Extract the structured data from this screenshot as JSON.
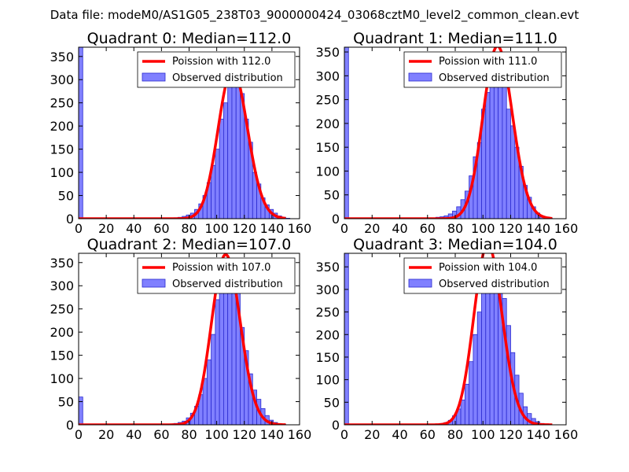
{
  "suptitle": "Data file: modeM0/AS1G05_238T03_9000000424_03068cztM0_level2_common_clean.evt",
  "colors": {
    "bars_fill": "#8080ff",
    "bars_stroke": "#2a2ad0",
    "poisson_line": "#ff0000",
    "axes": "#000000"
  },
  "chart_data": [
    {
      "type": "bar",
      "title": "Quadrant 0: Median=112.0",
      "legend": {
        "line": "Poission with 112.0",
        "bars": "Observed distribution",
        "placement": "top-right"
      },
      "xlim": [
        0,
        160
      ],
      "ylim": [
        0,
        370
      ],
      "xticks": [
        "0",
        "20",
        "40",
        "60",
        "80",
        "100",
        "120",
        "140",
        "160"
      ],
      "yticks": [
        "0",
        "50",
        "100",
        "150",
        "200",
        "250",
        "300",
        "350"
      ],
      "hist": {
        "bin_width": 3,
        "left_edge_bar": {
          "x0": 0,
          "x1": 3,
          "value": 370
        },
        "bins": [
          [
            66,
            1
          ],
          [
            69,
            2
          ],
          [
            72,
            3
          ],
          [
            75,
            5
          ],
          [
            78,
            8
          ],
          [
            81,
            12
          ],
          [
            84,
            20
          ],
          [
            87,
            32
          ],
          [
            90,
            50
          ],
          [
            93,
            78
          ],
          [
            96,
            115
          ],
          [
            99,
            150
          ],
          [
            102,
            215
          ],
          [
            105,
            250
          ],
          [
            108,
            320
          ],
          [
            111,
            340
          ],
          [
            114,
            310
          ],
          [
            117,
            270
          ],
          [
            120,
            215
          ],
          [
            123,
            165
          ],
          [
            126,
            100
          ],
          [
            129,
            75
          ],
          [
            132,
            45
          ],
          [
            135,
            30
          ],
          [
            138,
            20
          ],
          [
            141,
            12
          ],
          [
            144,
            6
          ],
          [
            147,
            3
          ],
          [
            150,
            1
          ]
        ]
      },
      "poisson_mean": 112.0
    },
    {
      "type": "bar",
      "title": "Quadrant 1: Median=111.0",
      "legend": {
        "line": "Poission with 111.0",
        "bars": "Observed distribution",
        "placement": "top-right"
      },
      "xlim": [
        0,
        160
      ],
      "ylim": [
        0,
        360
      ],
      "xticks": [
        "0",
        "20",
        "40",
        "60",
        "80",
        "100",
        "120",
        "140",
        "160"
      ],
      "yticks": [
        "0",
        "50",
        "100",
        "150",
        "200",
        "250",
        "300",
        "350"
      ],
      "hist": {
        "bin_width": 3,
        "left_edge_bar": {
          "x0": 0,
          "x1": 3,
          "value": 360
        },
        "bins": [
          [
            63,
            1
          ],
          [
            66,
            3
          ],
          [
            69,
            4
          ],
          [
            72,
            6
          ],
          [
            75,
            10
          ],
          [
            78,
            16
          ],
          [
            81,
            25
          ],
          [
            84,
            40
          ],
          [
            87,
            58
          ],
          [
            90,
            90
          ],
          [
            93,
            130
          ],
          [
            96,
            160
          ],
          [
            99,
            230
          ],
          [
            102,
            265
          ],
          [
            105,
            325
          ],
          [
            108,
            340
          ],
          [
            111,
            330
          ],
          [
            114,
            310
          ],
          [
            117,
            230
          ],
          [
            120,
            195
          ],
          [
            123,
            150
          ],
          [
            126,
            110
          ],
          [
            129,
            70
          ],
          [
            132,
            45
          ],
          [
            135,
            25
          ],
          [
            138,
            12
          ],
          [
            141,
            6
          ],
          [
            144,
            3
          ],
          [
            147,
            1
          ]
        ]
      },
      "poisson_mean": 111.0
    },
    {
      "type": "bar",
      "title": "Quadrant 2: Median=107.0",
      "legend": {
        "line": "Poission with 107.0",
        "bars": "Observed distribution",
        "placement": "top-right"
      },
      "xlim": [
        0,
        160
      ],
      "ylim": [
        0,
        370
      ],
      "xticks": [
        "0",
        "20",
        "40",
        "60",
        "80",
        "100",
        "120",
        "140",
        "160"
      ],
      "yticks": [
        "0",
        "50",
        "100",
        "150",
        "200",
        "250",
        "300",
        "350"
      ],
      "hist": {
        "bin_width": 3,
        "left_edge_bar": {
          "x0": 0,
          "x1": 3,
          "value": 60
        },
        "bins": [
          [
            66,
            2
          ],
          [
            69,
            3
          ],
          [
            72,
            5
          ],
          [
            75,
            8
          ],
          [
            78,
            15
          ],
          [
            81,
            25
          ],
          [
            84,
            40
          ],
          [
            87,
            65
          ],
          [
            90,
            100
          ],
          [
            93,
            140
          ],
          [
            96,
            195
          ],
          [
            99,
            270
          ],
          [
            102,
            290
          ],
          [
            105,
            335
          ],
          [
            108,
            350
          ],
          [
            111,
            340
          ],
          [
            114,
            310
          ],
          [
            117,
            210
          ],
          [
            120,
            160
          ],
          [
            123,
            110
          ],
          [
            126,
            75
          ],
          [
            129,
            55
          ],
          [
            132,
            35
          ],
          [
            135,
            20
          ],
          [
            138,
            10
          ],
          [
            141,
            5
          ],
          [
            144,
            2
          ],
          [
            147,
            1
          ]
        ]
      },
      "poisson_mean": 107.0
    },
    {
      "type": "bar",
      "title": "Quadrant 3: Median=104.0",
      "legend": {
        "line": "Poission with 104.0",
        "bars": "Observed distribution",
        "placement": "top-right"
      },
      "xlim": [
        0,
        160
      ],
      "ylim": [
        0,
        380
      ],
      "xticks": [
        "0",
        "20",
        "40",
        "60",
        "80",
        "100",
        "120",
        "140",
        "160"
      ],
      "yticks": [
        "0",
        "50",
        "100",
        "150",
        "200",
        "250",
        "300",
        "350"
      ],
      "hist": {
        "bin_width": 3,
        "left_edge_bar": {
          "x0": 0,
          "x1": 3,
          "value": 380
        },
        "bins": [
          [
            63,
            1
          ],
          [
            66,
            2
          ],
          [
            69,
            3
          ],
          [
            72,
            5
          ],
          [
            75,
            10
          ],
          [
            78,
            20
          ],
          [
            81,
            35
          ],
          [
            84,
            55
          ],
          [
            87,
            90
          ],
          [
            90,
            140
          ],
          [
            93,
            200
          ],
          [
            96,
            250
          ],
          [
            99,
            300
          ],
          [
            102,
            320
          ],
          [
            105,
            350
          ],
          [
            108,
            355
          ],
          [
            111,
            340
          ],
          [
            114,
            280
          ],
          [
            117,
            220
          ],
          [
            120,
            160
          ],
          [
            123,
            110
          ],
          [
            126,
            70
          ],
          [
            129,
            40
          ],
          [
            132,
            25
          ],
          [
            135,
            14
          ],
          [
            138,
            7
          ],
          [
            141,
            3
          ],
          [
            144,
            1
          ]
        ]
      },
      "poisson_mean": 104.0
    }
  ]
}
